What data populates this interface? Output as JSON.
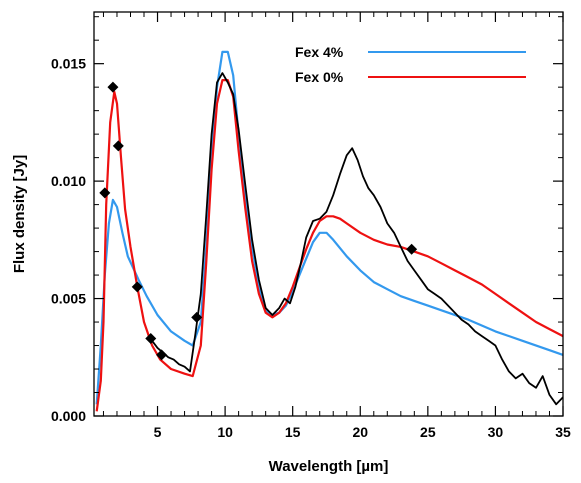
{
  "chart_data": {
    "type": "line",
    "title": "",
    "xlabel": "Wavelength [µm]",
    "ylabel": "Flux density [Jy]",
    "xlim": [
      0.3,
      35
    ],
    "ylim": [
      0,
      0.0172
    ],
    "x_ticks": [
      5,
      10,
      15,
      20,
      25,
      30,
      35
    ],
    "x_tick_labels": [
      "5",
      "10",
      "15",
      "20",
      "25",
      "30",
      "35"
    ],
    "y_ticks": [
      0,
      0.005,
      0.01,
      0.015
    ],
    "y_tick_labels": [
      "0.000",
      "0.005",
      "0.010",
      "0.015"
    ],
    "grid": false,
    "legend_position": "top-right",
    "series": [
      {
        "name": "Fex 4%",
        "color": "#3399ee",
        "style": "line",
        "points": [
          [
            0.5,
            0.0005
          ],
          [
            0.8,
            0.003
          ],
          [
            1.1,
            0.006
          ],
          [
            1.4,
            0.0082
          ],
          [
            1.7,
            0.0092
          ],
          [
            2.0,
            0.0089
          ],
          [
            2.4,
            0.0078
          ],
          [
            2.8,
            0.0068
          ],
          [
            3.2,
            0.0063
          ],
          [
            3.6,
            0.0058
          ],
          [
            4.2,
            0.0051
          ],
          [
            5,
            0.0043
          ],
          [
            6,
            0.0036
          ],
          [
            7,
            0.0032
          ],
          [
            7.6,
            0.003
          ],
          [
            8.2,
            0.004
          ],
          [
            8.6,
            0.0072
          ],
          [
            9,
            0.011
          ],
          [
            9.4,
            0.014
          ],
          [
            9.8,
            0.0155
          ],
          [
            10.2,
            0.0155
          ],
          [
            10.6,
            0.0145
          ],
          [
            11,
            0.012
          ],
          [
            11.5,
            0.0094
          ],
          [
            12,
            0.0072
          ],
          [
            12.5,
            0.0055
          ],
          [
            13,
            0.0045
          ],
          [
            13.5,
            0.0043
          ],
          [
            14,
            0.0044
          ],
          [
            14.5,
            0.0047
          ],
          [
            15,
            0.0053
          ],
          [
            15.5,
            0.006
          ],
          [
            16,
            0.0067
          ],
          [
            16.5,
            0.0074
          ],
          [
            17,
            0.0078
          ],
          [
            17.5,
            0.0078
          ],
          [
            18,
            0.0075
          ],
          [
            19,
            0.0068
          ],
          [
            20,
            0.0062
          ],
          [
            21,
            0.0057
          ],
          [
            22,
            0.0054
          ],
          [
            23,
            0.0051
          ],
          [
            24,
            0.0049
          ],
          [
            25,
            0.0047
          ],
          [
            26,
            0.0045
          ],
          [
            28,
            0.0041
          ],
          [
            30,
            0.0036
          ],
          [
            32,
            0.0032
          ],
          [
            34,
            0.0028
          ],
          [
            35,
            0.0026
          ]
        ]
      },
      {
        "name": "Fex 0%",
        "color": "#ee1111",
        "style": "line",
        "points": [
          [
            0.5,
            0.0002
          ],
          [
            0.8,
            0.0015
          ],
          [
            1.0,
            0.004
          ],
          [
            1.2,
            0.009
          ],
          [
            1.5,
            0.0125
          ],
          [
            1.8,
            0.0138
          ],
          [
            2.0,
            0.0133
          ],
          [
            2.3,
            0.011
          ],
          [
            2.6,
            0.0088
          ],
          [
            3.0,
            0.0072
          ],
          [
            3.5,
            0.0055
          ],
          [
            4.0,
            0.004
          ],
          [
            4.6,
            0.003
          ],
          [
            5.2,
            0.0024
          ],
          [
            6,
            0.002
          ],
          [
            7,
            0.0018
          ],
          [
            7.6,
            0.0017
          ],
          [
            8.2,
            0.003
          ],
          [
            8.6,
            0.0065
          ],
          [
            9,
            0.0105
          ],
          [
            9.4,
            0.0133
          ],
          [
            9.8,
            0.0143
          ],
          [
            10.2,
            0.0143
          ],
          [
            10.6,
            0.0136
          ],
          [
            11,
            0.0113
          ],
          [
            11.5,
            0.0088
          ],
          [
            12,
            0.0066
          ],
          [
            12.5,
            0.0052
          ],
          [
            13,
            0.0044
          ],
          [
            13.5,
            0.0042
          ],
          [
            14,
            0.0044
          ],
          [
            14.5,
            0.0048
          ],
          [
            15,
            0.0055
          ],
          [
            15.5,
            0.0063
          ],
          [
            16,
            0.0071
          ],
          [
            16.5,
            0.0078
          ],
          [
            17,
            0.0083
          ],
          [
            17.5,
            0.0085
          ],
          [
            18,
            0.0085
          ],
          [
            18.5,
            0.0084
          ],
          [
            19,
            0.0082
          ],
          [
            20,
            0.0078
          ],
          [
            21,
            0.0075
          ],
          [
            22,
            0.0073
          ],
          [
            23,
            0.0072
          ],
          [
            24,
            0.007
          ],
          [
            25,
            0.0068
          ],
          [
            26,
            0.0065
          ],
          [
            27,
            0.0062
          ],
          [
            28,
            0.0059
          ],
          [
            29,
            0.0056
          ],
          [
            30,
            0.0052
          ],
          [
            31,
            0.0048
          ],
          [
            32,
            0.0044
          ],
          [
            33,
            0.004
          ],
          [
            34,
            0.0037
          ],
          [
            35,
            0.0034
          ]
        ]
      },
      {
        "name": "",
        "color": "#000000",
        "style": "line",
        "points": [
          [
            4.6,
            0.0032
          ],
          [
            5.0,
            0.0029
          ],
          [
            5.4,
            0.0027
          ],
          [
            5.8,
            0.0025
          ],
          [
            6.2,
            0.0024
          ],
          [
            6.6,
            0.0022
          ],
          [
            7.0,
            0.0021
          ],
          [
            7.4,
            0.0019
          ],
          [
            7.8,
            0.0035
          ],
          [
            8.2,
            0.0052
          ],
          [
            8.6,
            0.0085
          ],
          [
            9.0,
            0.012
          ],
          [
            9.4,
            0.0142
          ],
          [
            9.8,
            0.0146
          ],
          [
            10.2,
            0.0142
          ],
          [
            10.6,
            0.0137
          ],
          [
            11.0,
            0.0122
          ],
          [
            11.5,
            0.0098
          ],
          [
            12,
            0.0075
          ],
          [
            12.5,
            0.0058
          ],
          [
            13,
            0.0046
          ],
          [
            13.5,
            0.0043
          ],
          [
            14,
            0.0046
          ],
          [
            14.4,
            0.005
          ],
          [
            14.8,
            0.0048
          ],
          [
            15.2,
            0.0055
          ],
          [
            15.6,
            0.0065
          ],
          [
            16,
            0.0076
          ],
          [
            16.5,
            0.0083
          ],
          [
            17,
            0.0084
          ],
          [
            17.5,
            0.0087
          ],
          [
            18,
            0.0094
          ],
          [
            18.5,
            0.0103
          ],
          [
            19,
            0.0111
          ],
          [
            19.4,
            0.0114
          ],
          [
            19.8,
            0.0109
          ],
          [
            20.2,
            0.0102
          ],
          [
            20.6,
            0.0097
          ],
          [
            21,
            0.0094
          ],
          [
            21.5,
            0.0089
          ],
          [
            22,
            0.0082
          ],
          [
            22.5,
            0.0078
          ],
          [
            23,
            0.0072
          ],
          [
            23.5,
            0.0066
          ],
          [
            24,
            0.0062
          ],
          [
            24.5,
            0.0058
          ],
          [
            25,
            0.0054
          ],
          [
            25.5,
            0.0052
          ],
          [
            26,
            0.005
          ],
          [
            26.5,
            0.0047
          ],
          [
            27,
            0.0044
          ],
          [
            27.5,
            0.0041
          ],
          [
            28,
            0.0039
          ],
          [
            28.5,
            0.0036
          ],
          [
            29,
            0.0034
          ],
          [
            29.5,
            0.0032
          ],
          [
            30,
            0.003
          ],
          [
            30.5,
            0.0024
          ],
          [
            31,
            0.0019
          ],
          [
            31.5,
            0.0016
          ],
          [
            32,
            0.0018
          ],
          [
            32.5,
            0.0014
          ],
          [
            33,
            0.0012
          ],
          [
            33.5,
            0.0017
          ],
          [
            34,
            0.0009
          ],
          [
            34.5,
            0.0005
          ],
          [
            35,
            0.0008
          ]
        ]
      },
      {
        "name": "",
        "color": "#000000",
        "style": "markers",
        "marker": "diamond",
        "points": [
          [
            1.1,
            0.0095
          ],
          [
            1.7,
            0.014
          ],
          [
            2.1,
            0.0115
          ],
          [
            3.5,
            0.0055
          ],
          [
            4.5,
            0.0033
          ],
          [
            5.3,
            0.0026
          ],
          [
            7.9,
            0.0042
          ],
          [
            23.8,
            0.0071
          ]
        ]
      }
    ]
  }
}
